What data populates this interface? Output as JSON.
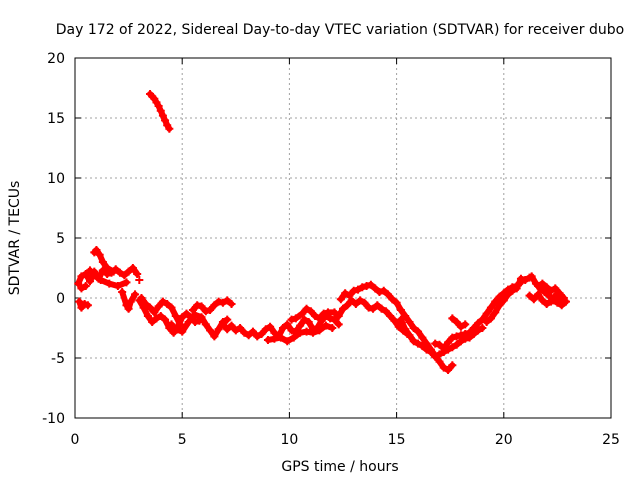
{
  "chart_data": {
    "type": "scatter",
    "title": "Day 172 of 2022, Sidereal Day-to-day VTEC variation (SDTVAR) for receiver dubo",
    "xlabel": "GPS time / hours",
    "ylabel": "SDTVAR / TECUs",
    "xlim": [
      0,
      25
    ],
    "ylim": [
      -10,
      20
    ],
    "xticks": [
      0,
      5,
      10,
      15,
      20,
      25
    ],
    "yticks": [
      -10,
      -5,
      0,
      5,
      10,
      15,
      20
    ],
    "grid": true,
    "marker_color": "#ff0000",
    "series": [
      {
        "name": "SDTVAR",
        "points": [
          [
            0.2,
            -0.3
          ],
          [
            0.3,
            -0.8
          ],
          [
            0.45,
            -0.5
          ],
          [
            0.6,
            -0.6
          ],
          [
            0.15,
            1.2
          ],
          [
            0.3,
            1.8
          ],
          [
            0.5,
            2.0
          ],
          [
            0.7,
            1.4
          ],
          [
            0.9,
            2.2
          ],
          [
            1.1,
            1.6
          ],
          [
            1.3,
            2.3
          ],
          [
            1.5,
            2.0
          ],
          [
            1.7,
            2.1
          ],
          [
            1.9,
            2.4
          ],
          [
            2.1,
            2.1
          ],
          [
            2.3,
            1.9
          ],
          [
            2.5,
            2.2
          ],
          [
            2.7,
            2.5
          ],
          [
            2.9,
            2.0
          ],
          [
            0.3,
            0.8
          ],
          [
            0.5,
            1.0
          ],
          [
            0.7,
            2.3
          ],
          [
            0.9,
            1.9
          ],
          [
            1.2,
            1.5
          ],
          [
            1.6,
            1.2
          ],
          [
            2.0,
            1.0
          ],
          [
            2.4,
            1.3
          ],
          [
            0.9,
            3.8
          ],
          [
            1.0,
            4.0
          ],
          [
            1.15,
            3.6
          ],
          [
            1.3,
            3.0
          ],
          [
            1.5,
            2.5
          ],
          [
            1.8,
            2.2
          ],
          [
            2.2,
            0.5
          ],
          [
            2.4,
            -0.6
          ],
          [
            2.5,
            -0.9
          ],
          [
            2.6,
            -0.3
          ],
          [
            2.8,
            0.3
          ],
          [
            3.0,
            1.5
          ],
          [
            3.1,
            0.0
          ],
          [
            3.3,
            -0.5
          ],
          [
            3.5,
            -0.8
          ],
          [
            3.7,
            -1.2
          ],
          [
            3.9,
            -0.7
          ],
          [
            4.1,
            -0.3
          ],
          [
            4.3,
            -0.5
          ],
          [
            4.5,
            -0.8
          ],
          [
            4.7,
            -1.5
          ],
          [
            4.9,
            -2.2
          ],
          [
            3.0,
            -0.2
          ],
          [
            3.2,
            -0.8
          ],
          [
            3.4,
            -1.5
          ],
          [
            3.6,
            -2.0
          ],
          [
            3.8,
            -1.7
          ],
          [
            4.0,
            -1.5
          ],
          [
            4.2,
            -1.8
          ],
          [
            4.4,
            -2.5
          ],
          [
            4.6,
            -2.9
          ],
          [
            4.8,
            -2.4
          ],
          [
            5.0,
            -1.6
          ],
          [
            5.2,
            -1.3
          ],
          [
            5.4,
            -1.6
          ],
          [
            5.6,
            -2.0
          ],
          [
            5.8,
            -1.9
          ],
          [
            4.5,
            -2.2
          ],
          [
            4.7,
            -2.6
          ],
          [
            5.0,
            -2.8
          ],
          [
            5.3,
            -2.0
          ],
          [
            5.6,
            -1.4
          ],
          [
            5.9,
            -1.6
          ],
          [
            6.1,
            -2.2
          ],
          [
            6.3,
            -2.7
          ],
          [
            6.5,
            -3.2
          ],
          [
            6.7,
            -2.6
          ],
          [
            6.9,
            -2.0
          ],
          [
            7.1,
            -1.8
          ],
          [
            5.5,
            -1.0
          ],
          [
            5.7,
            -0.6
          ],
          [
            5.9,
            -0.7
          ],
          [
            6.1,
            -1.1
          ],
          [
            6.3,
            -1.0
          ],
          [
            6.5,
            -0.6
          ],
          [
            6.7,
            -0.3
          ],
          [
            6.9,
            -0.4
          ],
          [
            7.1,
            -0.2
          ],
          [
            7.3,
            -0.5
          ],
          [
            6.9,
            -2.2
          ],
          [
            7.1,
            -2.6
          ],
          [
            7.3,
            -2.3
          ],
          [
            7.5,
            -2.7
          ],
          [
            7.7,
            -2.5
          ],
          [
            7.9,
            -2.9
          ],
          [
            8.1,
            -3.1
          ],
          [
            8.3,
            -2.8
          ],
          [
            8.5,
            -3.2
          ],
          [
            8.7,
            -3.0
          ],
          [
            8.9,
            -2.6
          ],
          [
            9.1,
            -2.4
          ],
          [
            9.3,
            -2.9
          ],
          [
            9.5,
            -3.2
          ],
          [
            9.7,
            -2.5
          ],
          [
            9.9,
            -2.2
          ],
          [
            10.1,
            -2.7
          ],
          [
            10.3,
            -2.8
          ],
          [
            10.5,
            -2.3
          ],
          [
            10.7,
            -1.8
          ],
          [
            10.9,
            -2.0
          ],
          [
            11.1,
            -2.6
          ],
          [
            11.3,
            -2.5
          ],
          [
            11.5,
            -1.9
          ],
          [
            11.7,
            -1.5
          ],
          [
            11.9,
            -1.7
          ],
          [
            12.1,
            -1.8
          ],
          [
            12.3,
            -2.2
          ],
          [
            9.0,
            -3.5
          ],
          [
            9.3,
            -3.4
          ],
          [
            9.6,
            -3.3
          ],
          [
            9.9,
            -3.6
          ],
          [
            10.2,
            -3.3
          ],
          [
            10.5,
            -2.9
          ],
          [
            10.8,
            -2.8
          ],
          [
            11.1,
            -2.9
          ],
          [
            11.4,
            -2.7
          ],
          [
            11.7,
            -2.3
          ],
          [
            12.0,
            -2.5
          ],
          [
            10.1,
            -1.8
          ],
          [
            10.3,
            -1.7
          ],
          [
            10.6,
            -1.3
          ],
          [
            10.8,
            -0.9
          ],
          [
            11.0,
            -1.1
          ],
          [
            11.2,
            -1.5
          ],
          [
            11.4,
            -1.7
          ],
          [
            11.6,
            -1.3
          ],
          [
            11.8,
            -1.2
          ],
          [
            12.1,
            -1.2
          ],
          [
            12.3,
            -1.5
          ],
          [
            12.5,
            -0.9
          ],
          [
            12.7,
            -0.6
          ],
          [
            12.9,
            -0.2
          ],
          [
            13.1,
            -0.5
          ],
          [
            13.3,
            -0.2
          ],
          [
            13.5,
            -0.4
          ],
          [
            13.7,
            -0.8
          ],
          [
            13.9,
            -0.9
          ],
          [
            14.1,
            -0.6
          ],
          [
            14.3,
            -0.9
          ],
          [
            14.5,
            -1.1
          ],
          [
            14.7,
            -1.5
          ],
          [
            14.9,
            -1.9
          ],
          [
            15.1,
            -2.4
          ],
          [
            15.3,
            -2.7
          ],
          [
            15.5,
            -3.0
          ],
          [
            12.4,
            -0.1
          ],
          [
            12.6,
            0.4
          ],
          [
            12.8,
            0.2
          ],
          [
            13.0,
            0.6
          ],
          [
            13.2,
            0.7
          ],
          [
            13.4,
            0.9
          ],
          [
            13.6,
            1.0
          ],
          [
            13.8,
            1.1
          ],
          [
            14.0,
            0.8
          ],
          [
            14.2,
            0.5
          ],
          [
            14.4,
            0.6
          ],
          [
            14.6,
            0.3
          ],
          [
            14.8,
            -0.1
          ],
          [
            15.0,
            -0.4
          ],
          [
            15.2,
            -1.0
          ],
          [
            15.4,
            -1.5
          ],
          [
            15.6,
            -2.0
          ],
          [
            15.8,
            -2.5
          ],
          [
            16.0,
            -2.8
          ],
          [
            16.2,
            -3.3
          ],
          [
            16.4,
            -3.8
          ],
          [
            16.6,
            -4.3
          ],
          [
            16.8,
            -4.8
          ],
          [
            17.0,
            -5.3
          ],
          [
            17.2,
            -5.8
          ],
          [
            17.4,
            -6.0
          ],
          [
            17.6,
            -5.6
          ],
          [
            15.2,
            -1.8
          ],
          [
            15.4,
            -2.6
          ],
          [
            15.6,
            -3.1
          ],
          [
            15.8,
            -3.6
          ],
          [
            16.0,
            -3.8
          ],
          [
            16.2,
            -4.0
          ],
          [
            16.4,
            -4.3
          ],
          [
            16.6,
            -4.5
          ],
          [
            16.8,
            -4.9
          ],
          [
            17.0,
            -4.7
          ],
          [
            17.2,
            -4.5
          ],
          [
            17.4,
            -4.3
          ],
          [
            17.6,
            -4.1
          ],
          [
            17.8,
            -3.9
          ],
          [
            18.0,
            -3.6
          ],
          [
            18.2,
            -3.4
          ],
          [
            18.4,
            -3.3
          ],
          [
            18.6,
            -3.0
          ],
          [
            18.8,
            -2.7
          ],
          [
            19.0,
            -2.5
          ],
          [
            16.8,
            -3.8
          ],
          [
            17.0,
            -3.9
          ],
          [
            17.2,
            -4.2
          ],
          [
            17.4,
            -3.7
          ],
          [
            17.6,
            -3.3
          ],
          [
            17.8,
            -3.2
          ],
          [
            18.0,
            -3.1
          ],
          [
            18.2,
            -3.0
          ],
          [
            18.4,
            -2.9
          ],
          [
            18.6,
            -2.5
          ],
          [
            18.8,
            -2.1
          ],
          [
            19.0,
            -1.8
          ],
          [
            19.2,
            -1.3
          ],
          [
            19.4,
            -0.8
          ],
          [
            19.6,
            -0.3
          ],
          [
            19.8,
            0.1
          ],
          [
            20.0,
            0.4
          ],
          [
            20.2,
            0.7
          ],
          [
            20.4,
            0.9
          ],
          [
            20.6,
            1.0
          ],
          [
            20.8,
            1.3
          ],
          [
            17.6,
            -1.7
          ],
          [
            17.8,
            -2.0
          ],
          [
            18.0,
            -2.4
          ],
          [
            18.2,
            -2.2
          ],
          [
            19.2,
            -2.0
          ],
          [
            19.4,
            -1.7
          ],
          [
            19.6,
            -1.2
          ],
          [
            19.8,
            -0.6
          ],
          [
            20.0,
            -0.2
          ],
          [
            20.2,
            0.3
          ],
          [
            20.4,
            0.6
          ],
          [
            20.6,
            0.8
          ],
          [
            20.8,
            1.6
          ],
          [
            21.0,
            1.5
          ],
          [
            21.2,
            1.7
          ],
          [
            21.3,
            1.8
          ],
          [
            21.5,
            1.2
          ],
          [
            21.7,
            0.8
          ],
          [
            21.9,
            0.5
          ],
          [
            22.1,
            0.2
          ],
          [
            22.3,
            -0.2
          ],
          [
            22.5,
            -0.4
          ],
          [
            22.7,
            -0.6
          ],
          [
            22.9,
            -0.3
          ],
          [
            21.2,
            0.2
          ],
          [
            21.4,
            -0.1
          ],
          [
            21.6,
            0.3
          ],
          [
            21.8,
            -0.2
          ],
          [
            22.0,
            -0.5
          ],
          [
            22.2,
            -0.3
          ],
          [
            22.4,
            0.2
          ],
          [
            22.6,
            0.1
          ],
          [
            22.8,
            -0.4
          ],
          [
            21.6,
            1.0
          ],
          [
            21.8,
            1.2
          ],
          [
            22.0,
            0.9
          ],
          [
            22.2,
            0.6
          ],
          [
            22.4,
            0.8
          ],
          [
            22.6,
            0.4
          ],
          [
            22.8,
            0.0
          ],
          [
            3.5,
            17.0
          ],
          [
            3.6,
            16.8
          ],
          [
            3.7,
            16.6
          ],
          [
            3.8,
            16.3
          ],
          [
            3.9,
            16.0
          ],
          [
            4.0,
            15.6
          ],
          [
            4.1,
            15.2
          ],
          [
            4.2,
            14.8
          ],
          [
            4.3,
            14.4
          ],
          [
            4.4,
            14.1
          ]
        ]
      }
    ]
  }
}
